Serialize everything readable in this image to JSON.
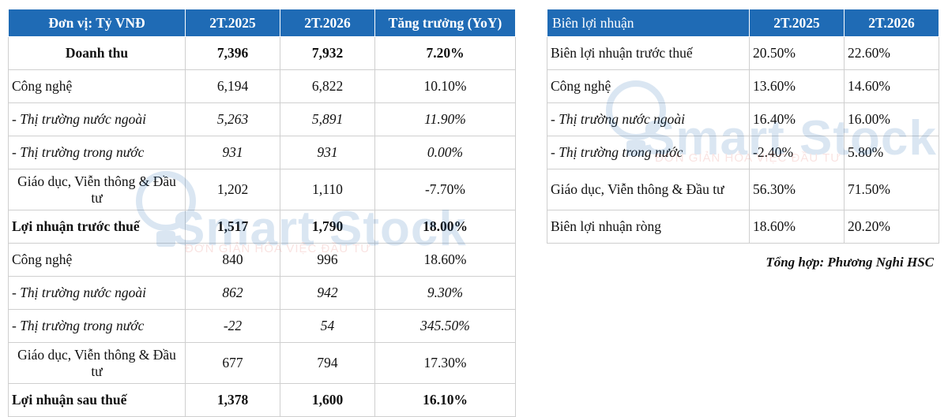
{
  "left_table": {
    "headers": [
      "Đơn vị: Tỷ VNĐ",
      "2T.2025",
      "2T.2026",
      "Tăng trưởng (YoY)"
    ],
    "rows": [
      {
        "label": "Doanh thu",
        "v1": "7,396",
        "v2": "7,932",
        "g": "7.20%"
      },
      {
        "label": "Công nghệ",
        "v1": "6,194",
        "v2": "6,822",
        "g": "10.10%"
      },
      {
        "label": " - Thị trường nước ngoài",
        "v1": "5,263",
        "v2": "5,891",
        "g": "11.90%"
      },
      {
        "label": " - Thị trường trong nước",
        "v1": "931",
        "v2": "931",
        "g": "0.00%"
      },
      {
        "label": "Giáo dục, Viễn thông & Đầu tư",
        "v1": "1,202",
        "v2": "1,110",
        "g": "-7.70%"
      },
      {
        "label": "Lợi nhuận trước thuế",
        "v1": "1,517",
        "v2": "1,790",
        "g": "18.00%"
      },
      {
        "label": "Công nghệ",
        "v1": "840",
        "v2": "996",
        "g": "18.60%"
      },
      {
        "label": " - Thị trường nước ngoài",
        "v1": "862",
        "v2": "942",
        "g": "9.30%"
      },
      {
        "label": " - Thị trường trong nước",
        "v1": "-22",
        "v2": "54",
        "g": "345.50%"
      },
      {
        "label": "Giáo dục, Viễn thông & Đầu tư",
        "v1": "677",
        "v2": "794",
        "g": "17.30%"
      },
      {
        "label": "Lợi nhuận sau thuế",
        "v1": "1,378",
        "v2": "1,600",
        "g": "16.10%"
      }
    ]
  },
  "right_table": {
    "headers": [
      "Biên lợi nhuận",
      "2T.2025",
      "2T.2026"
    ],
    "rows": [
      {
        "label": "Biên lợi nhuận trước thuế",
        "v1": "20.50%",
        "v2": "22.60%"
      },
      {
        "label": "Công nghệ",
        "v1": "13.60%",
        "v2": "14.60%"
      },
      {
        "label": " - Thị trường nước ngoài",
        "v1": "16.40%",
        "v2": "16.00%"
      },
      {
        "label": " - Thị trường trong nước",
        "v1": "-2.40%",
        "v2": "5.80%"
      },
      {
        "label": "Giáo dục, Viễn thông & Đầu tư",
        "v1": "56.30%",
        "v2": "71.50%"
      },
      {
        "label": "Biên lợi nhuận ròng",
        "v1": "18.60%",
        "v2": "20.20%"
      }
    ]
  },
  "source": "Tổng hợp: Phương Nghi HSC",
  "watermark": {
    "name": "Smart Stock",
    "tagline": "ĐƠN GIẢN HÓA VIỆC ĐẦU TƯ"
  },
  "colors": {
    "header_bg": "#1f6bb5",
    "header_text": "#ffffff",
    "watermark": "#1f6bb5",
    "watermark_tagline": "#e0554a"
  }
}
